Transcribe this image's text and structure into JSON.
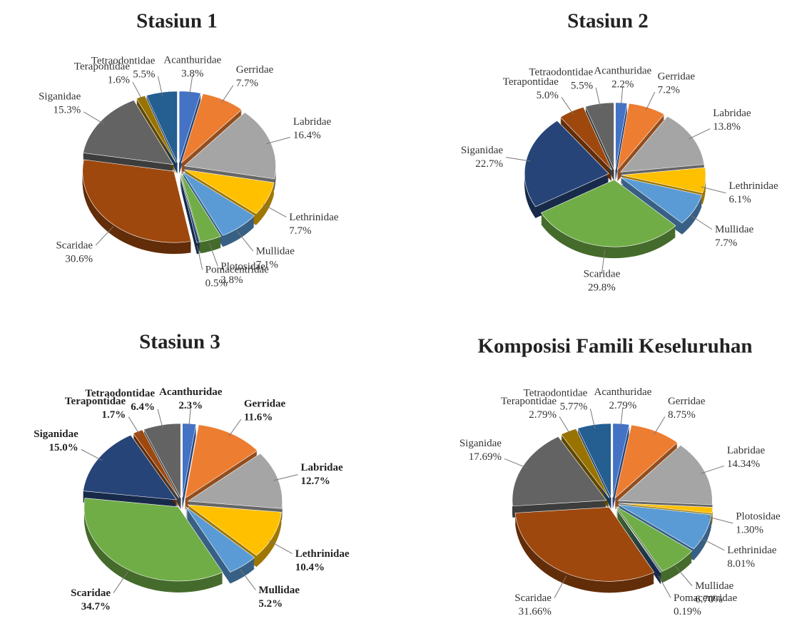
{
  "chart_data": [
    {
      "type": "pie",
      "title": "Stasiun 1",
      "categories": [
        "Acanthuridae",
        "Gerridae",
        "Labridae",
        "Lethrinidae",
        "Mullidae",
        "Plotosidae",
        "Pomacentridae",
        "Scaridae",
        "Siganidae",
        "Terapontidae",
        "Tetraodontidae"
      ],
      "values": [
        3.8,
        7.7,
        16.4,
        7.7,
        7.1,
        3.8,
        0.5,
        30.6,
        15.3,
        1.6,
        5.5
      ],
      "value_labels": [
        "3.8%",
        "7.7%",
        "16.4%",
        "7.7%",
        "7.1%",
        "3.8%",
        "0.5%",
        "30.6%",
        "15.3%",
        "1.6%",
        "5.5%"
      ],
      "colors": [
        "#4472c4",
        "#ed7d31",
        "#a5a5a5",
        "#ffc000",
        "#5b9bd5",
        "#70ad47",
        "#264478",
        "#9e480e",
        "#636363",
        "#997300",
        "#255e91"
      ]
    },
    {
      "type": "pie",
      "title": "Stasiun 2",
      "categories": [
        "Acanthuridae",
        "Gerridae",
        "Labridae",
        "Lethrinidae",
        "Mullidae",
        "Scaridae",
        "Siganidae",
        "Terapontidae",
        "Tetraodontidae"
      ],
      "values": [
        2.2,
        7.2,
        13.8,
        6.1,
        7.7,
        29.8,
        22.7,
        5.0,
        5.5
      ],
      "value_labels": [
        "2.2%",
        "7.2%",
        "13.8%",
        "6.1%",
        "7.7%",
        "29.8%",
        "22.7%",
        "5.0%",
        "5.5%"
      ],
      "colors": [
        "#4472c4",
        "#ed7d31",
        "#a5a5a5",
        "#ffc000",
        "#5b9bd5",
        "#70ad47",
        "#264478",
        "#9e480e",
        "#636363"
      ]
    },
    {
      "type": "pie",
      "title": "Stasiun 3",
      "categories": [
        "Acanthuridae",
        "Gerridae",
        "Labridae",
        "Lethrinidae",
        "Mullidae",
        "Scaridae",
        "Siganidae",
        "Terapontidae",
        "Tetraodontidae"
      ],
      "values": [
        2.3,
        11.6,
        12.7,
        10.4,
        5.2,
        34.7,
        15.0,
        1.7,
        6.4
      ],
      "value_labels": [
        "2.3%",
        "11.6%",
        "12.7%",
        "10.4%",
        "5.2%",
        "34.7%",
        "15.0%",
        "1.7%",
        "6.4%"
      ],
      "colors": [
        "#4472c4",
        "#ed7d31",
        "#a5a5a5",
        "#ffc000",
        "#5b9bd5",
        "#70ad47",
        "#264478",
        "#9e480e",
        "#636363"
      ]
    },
    {
      "type": "pie",
      "title": "Komposisi Famili Keseluruhan",
      "categories": [
        "Acanthuridae",
        "Gerridae",
        "Labridae",
        "Plotosidae",
        "Lethrinidae",
        "Mullidae",
        "Pomacentridae",
        "Scaridae",
        "Siganidae",
        "Terapontidae",
        "Tetraodontidae"
      ],
      "values": [
        2.79,
        8.75,
        14.34,
        1.3,
        8.01,
        6.7,
        0.19,
        31.66,
        17.69,
        2.79,
        5.77
      ],
      "value_labels": [
        "2.79%",
        "8.75%",
        "14.34%",
        "1.30%",
        "8.01%",
        "6.70%",
        "0.19%",
        "31.66%",
        "17.69%",
        "2.79%",
        "5.77%"
      ],
      "colors": [
        "#4472c4",
        "#ed7d31",
        "#a5a5a5",
        "#ffc000",
        "#5b9bd5",
        "#70ad47",
        "#264478",
        "#9e480e",
        "#636363",
        "#997300",
        "#255e91"
      ]
    }
  ]
}
